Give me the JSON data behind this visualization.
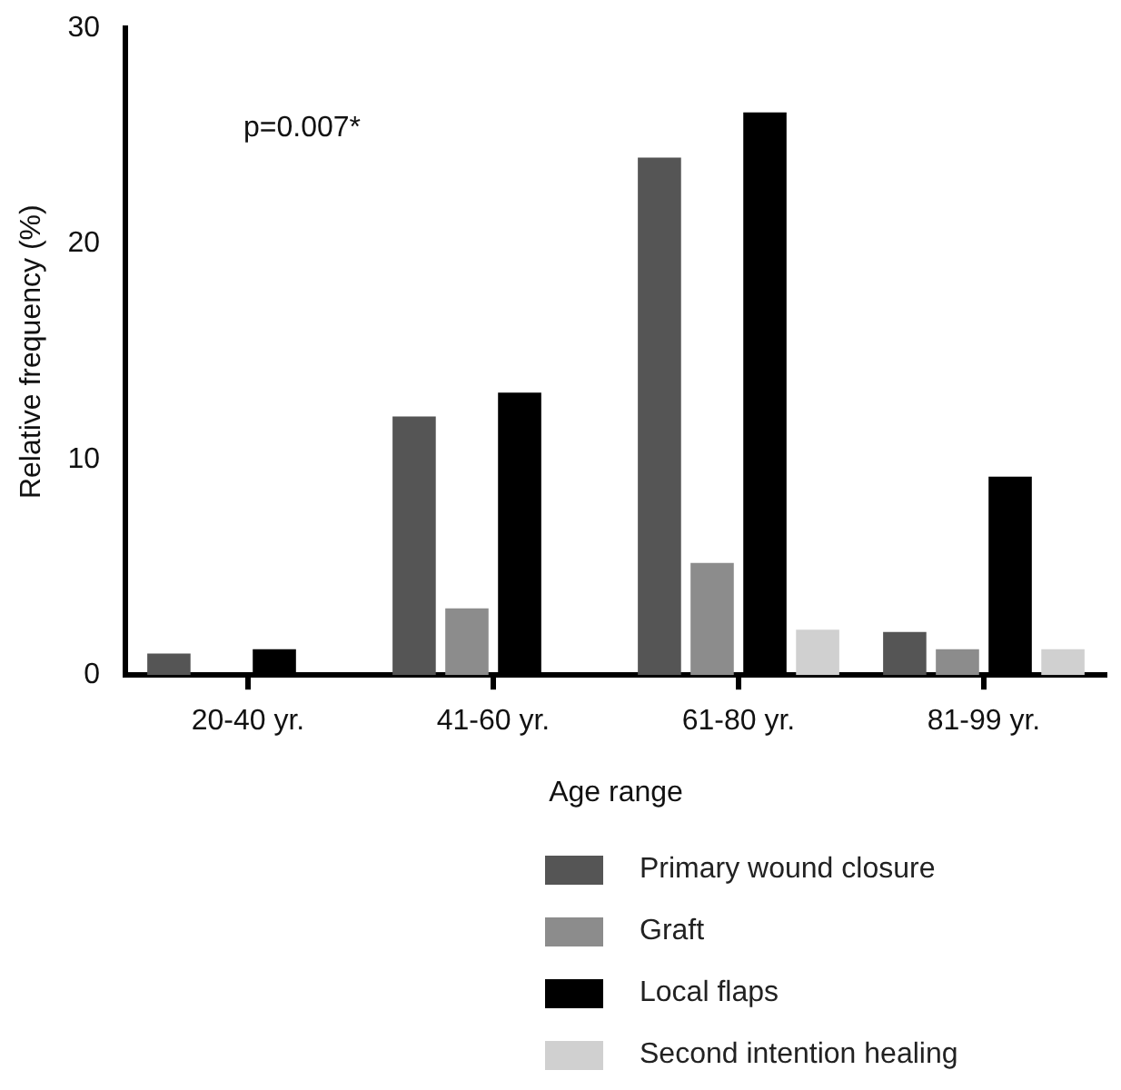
{
  "chart_data": {
    "type": "bar",
    "xlabel": "Age range",
    "ylabel": "Relative frequency (%)",
    "categories": [
      "20-40 yr.",
      "41-60 yr.",
      "61-80 yr.",
      "81-99 yr."
    ],
    "series": [
      {
        "name": "Primary wound closure",
        "color": "#555555",
        "values": [
          1,
          12,
          24,
          2
        ]
      },
      {
        "name": "Graft",
        "color": "#8c8c8c",
        "values": [
          0,
          3.1,
          5.2,
          1.2
        ]
      },
      {
        "name": "Local flaps",
        "color": "#000000",
        "values": [
          1.2,
          13.1,
          26.1,
          9.2
        ]
      },
      {
        "name": "Second intention healing",
        "color": "#d0d0d0",
        "values": [
          0,
          0,
          2.1,
          1.2
        ]
      }
    ],
    "ylim": [
      0,
      30
    ],
    "yticks": [
      0,
      10,
      20,
      30
    ],
    "grid": false,
    "legend": "bottom",
    "annotations": [
      "p=0.007*"
    ]
  }
}
